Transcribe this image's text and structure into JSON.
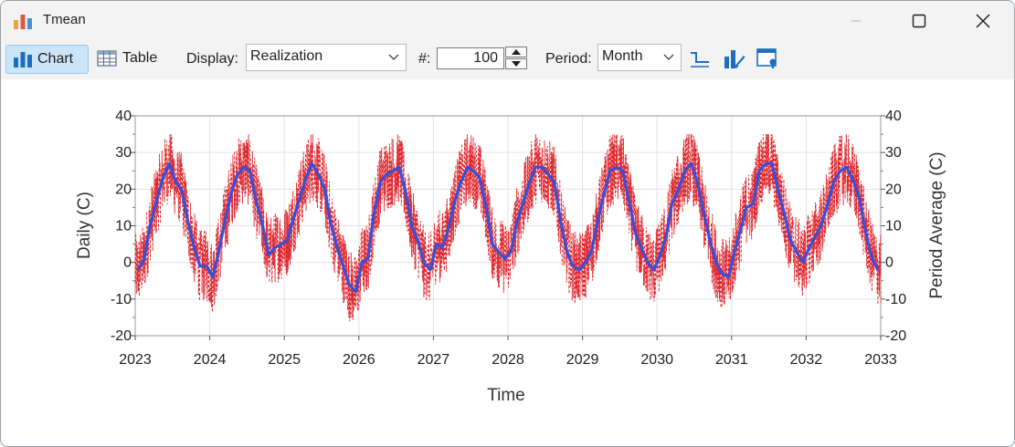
{
  "window": {
    "title": "Tmean"
  },
  "toolbar": {
    "chart_label": "Chart",
    "table_label": "Table",
    "display_label": "Display:",
    "display_value": "Realization",
    "count_label": "#:",
    "count_value": "100",
    "period_label": "Period:",
    "period_value": "Month"
  },
  "chart_data": {
    "type": "line",
    "xlabel": "Time",
    "ylabel_left": "Daily (C)",
    "ylabel_right": "Period Average (C)",
    "xlim": [
      2023,
      2033
    ],
    "ylim": [
      -20,
      40
    ],
    "x_ticks": [
      "2023",
      "2024",
      "2025",
      "2026",
      "2027",
      "2028",
      "2029",
      "2030",
      "2031",
      "2032",
      "2033"
    ],
    "y_ticks": [
      40,
      30,
      20,
      10,
      0,
      -10,
      -20
    ],
    "grid": true,
    "series": [
      {
        "kind": "period-average",
        "color": "#3a4ed6",
        "x": [
          2023.04,
          2023.12,
          2023.2,
          2023.29,
          2023.37,
          2023.46,
          2023.54,
          2023.62,
          2023.71,
          2023.79,
          2023.87,
          2023.96,
          2024.04,
          2024.12,
          2024.2,
          2024.29,
          2024.37,
          2024.46,
          2024.54,
          2024.62,
          2024.71,
          2024.79,
          2024.87,
          2024.96,
          2025.04,
          2025.12,
          2025.2,
          2025.29,
          2025.37,
          2025.46,
          2025.54,
          2025.62,
          2025.71,
          2025.79,
          2025.87,
          2025.96,
          2026.04,
          2026.12,
          2026.2,
          2026.29,
          2026.37,
          2026.46,
          2026.54,
          2026.62,
          2026.71,
          2026.79,
          2026.87,
          2026.96,
          2027.04,
          2027.12,
          2027.2,
          2027.29,
          2027.37,
          2027.46,
          2027.54,
          2027.62,
          2027.71,
          2027.79,
          2027.87,
          2027.96,
          2028.04,
          2028.12,
          2028.2,
          2028.29,
          2028.37,
          2028.46,
          2028.54,
          2028.62,
          2028.71,
          2028.79,
          2028.87,
          2028.96,
          2029.04,
          2029.12,
          2029.2,
          2029.29,
          2029.37,
          2029.46,
          2029.54,
          2029.62,
          2029.71,
          2029.79,
          2029.87,
          2029.96,
          2030.04,
          2030.12,
          2030.2,
          2030.29,
          2030.37,
          2030.46,
          2030.54,
          2030.62,
          2030.71,
          2030.79,
          2030.87,
          2030.96,
          2031.04,
          2031.12,
          2031.2,
          2031.29,
          2031.37,
          2031.46,
          2031.54,
          2031.62,
          2031.71,
          2031.79,
          2031.87,
          2031.96,
          2032.04,
          2032.12,
          2032.2,
          2032.29,
          2032.37,
          2032.46,
          2032.54,
          2032.62,
          2032.71,
          2032.79,
          2032.87,
          2032.96
        ],
        "y": [
          -2,
          1,
          10,
          17,
          23,
          27,
          22,
          20,
          11,
          4,
          -1,
          -1,
          -4,
          3,
          11,
          19,
          24,
          26,
          25,
          17,
          10,
          2,
          4,
          5,
          6,
          12,
          17,
          23,
          27,
          24,
          20,
          11,
          4,
          -1,
          -6,
          -8,
          0,
          1,
          13,
          22,
          24,
          25,
          26,
          20,
          10,
          6,
          0,
          -2,
          5,
          4,
          9,
          17,
          22,
          26,
          25,
          23,
          15,
          5,
          3,
          1,
          3,
          11,
          16,
          22,
          26,
          26,
          24,
          22,
          11,
          3,
          -1,
          -2,
          0,
          3,
          11,
          19,
          25,
          26,
          25,
          17,
          8,
          4,
          0,
          -2,
          2,
          7,
          16,
          20,
          25,
          27,
          22,
          14,
          6,
          0,
          -3,
          -4,
          3,
          9,
          15,
          16,
          25,
          27,
          27,
          20,
          13,
          6,
          3,
          0,
          4,
          7,
          10,
          16,
          22,
          25,
          26,
          23,
          18,
          9,
          2,
          -2
        ]
      },
      {
        "kind": "daily-realization",
        "color": "#e0282f",
        "note": "Dashed daily realization fluctuating around the period average"
      }
    ]
  }
}
